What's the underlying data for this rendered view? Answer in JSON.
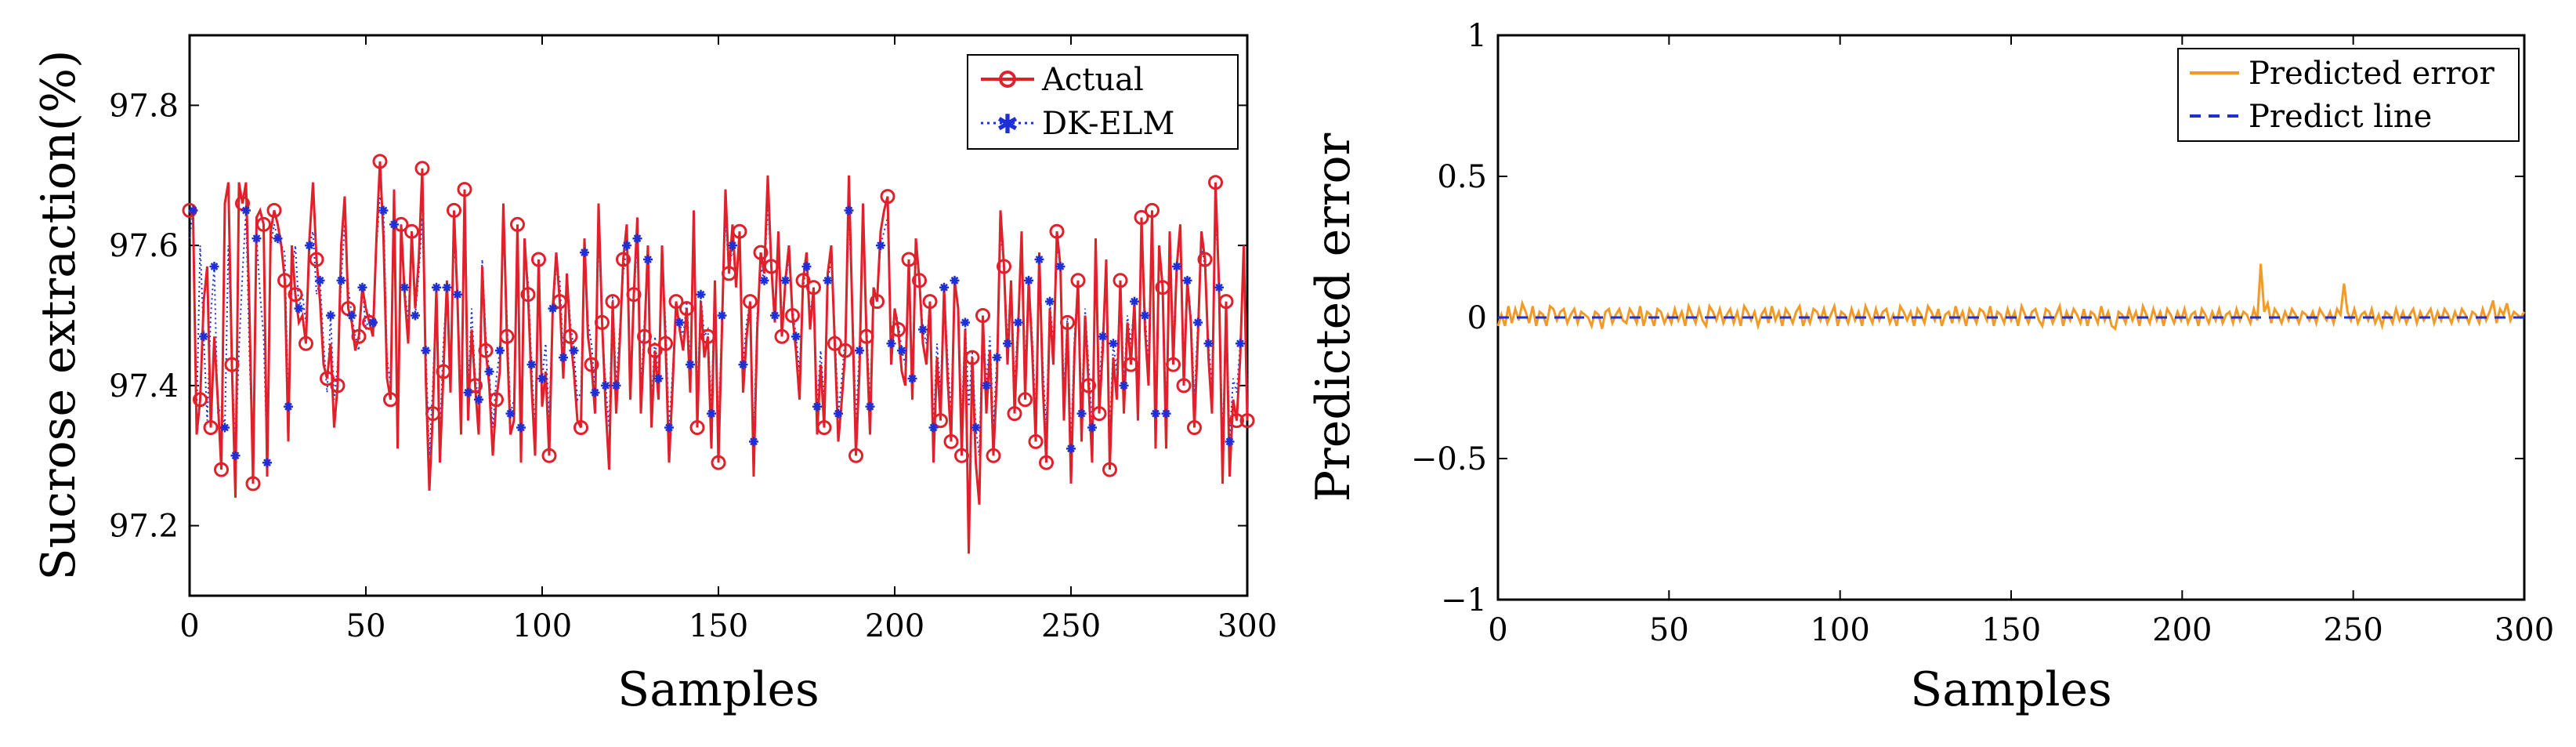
{
  "chart_data": [
    {
      "type": "line",
      "xlabel": "Samples",
      "ylabel": "Sucrose extraction(%)",
      "xlim": [
        0,
        300
      ],
      "ylim": [
        97.1,
        97.9
      ],
      "xticks": [
        0,
        50,
        100,
        150,
        200,
        250,
        300
      ],
      "xtick_labels": [
        "0",
        "50",
        "100",
        "150",
        "200",
        "250",
        "300"
      ],
      "yticks": [
        97.2,
        97.4,
        97.6,
        97.8
      ],
      "ytick_labels": [
        "97.2",
        "97.4",
        "97.6",
        "97.8"
      ],
      "legend_position": "top-right",
      "colors": {
        "actual": "#e0202a",
        "predicted": "#1f2fd6"
      },
      "series": [
        {
          "name": "Actual",
          "style": "solid line with circle markers",
          "values": [
            97.65,
            97.64,
            97.33,
            97.38,
            97.52,
            97.57,
            97.34,
            97.47,
            97.38,
            97.28,
            97.66,
            97.69,
            97.43,
            97.24,
            97.69,
            97.66,
            97.69,
            97.5,
            97.26,
            97.64,
            97.65,
            97.63,
            97.27,
            97.62,
            97.65,
            97.63,
            97.6,
            97.55,
            97.32,
            97.6,
            97.53,
            97.49,
            97.5,
            97.46,
            97.61,
            97.69,
            97.58,
            97.52,
            97.43,
            97.41,
            97.46,
            97.34,
            97.4,
            97.6,
            97.67,
            97.51,
            97.49,
            97.45,
            97.47,
            97.54,
            97.51,
            97.49,
            97.47,
            97.61,
            97.72,
            97.61,
            97.41,
            97.38,
            97.68,
            97.31,
            97.63,
            97.53,
            97.46,
            97.62,
            97.51,
            97.58,
            97.71,
            97.41,
            97.25,
            97.36,
            97.54,
            97.29,
            97.42,
            97.55,
            97.39,
            97.65,
            97.52,
            97.33,
            97.68,
            97.35,
            97.48,
            97.4,
            97.33,
            97.57,
            97.45,
            97.4,
            97.3,
            97.38,
            97.42,
            97.66,
            97.47,
            97.33,
            97.35,
            97.63,
            97.29,
            97.61,
            97.53,
            97.4,
            97.3,
            97.58,
            97.37,
            97.42,
            97.3,
            97.51,
            97.59,
            97.52,
            97.41,
            97.56,
            97.47,
            97.42,
            97.35,
            97.34,
            97.61,
            97.47,
            97.43,
            97.36,
            97.66,
            97.49,
            97.37,
            97.28,
            97.52,
            97.36,
            97.46,
            97.58,
            97.63,
            97.38,
            97.53,
            97.64,
            97.36,
            97.47,
            97.6,
            97.34,
            97.45,
            97.38,
            97.6,
            97.46,
            97.29,
            97.4,
            97.52,
            97.48,
            97.45,
            97.51,
            97.39,
            97.65,
            97.34,
            97.52,
            97.44,
            97.47,
            97.31,
            97.55,
            97.29,
            97.48,
            97.68,
            97.56,
            97.63,
            97.54,
            97.62,
            97.39,
            97.47,
            97.52,
            97.27,
            97.48,
            97.59,
            97.56,
            97.7,
            97.57,
            97.49,
            97.62,
            97.47,
            97.55,
            97.6,
            97.5,
            97.45,
            97.38,
            97.55,
            97.59,
            97.48,
            97.54,
            97.33,
            97.43,
            97.34,
            97.56,
            97.6,
            97.46,
            97.32,
            97.38,
            97.45,
            97.7,
            97.5,
            97.3,
            97.42,
            97.66,
            97.47,
            97.33,
            97.54,
            97.52,
            97.62,
            97.65,
            97.67,
            97.43,
            97.51,
            97.48,
            97.42,
            97.4,
            97.58,
            97.38,
            97.61,
            97.55,
            97.46,
            97.43,
            97.52,
            97.29,
            97.44,
            97.35,
            97.54,
            97.41,
            97.32,
            97.55,
            97.51,
            97.3,
            97.48,
            97.16,
            97.44,
            97.29,
            97.23,
            97.5,
            97.36,
            97.45,
            97.3,
            97.41,
            97.65,
            97.57,
            97.43,
            97.55,
            97.36,
            97.48,
            97.62,
            97.38,
            97.55,
            97.45,
            97.32,
            97.59,
            97.4,
            97.29,
            97.51,
            97.43,
            97.62,
            97.57,
            97.35,
            97.49,
            97.26,
            97.45,
            97.55,
            97.32,
            97.5,
            97.4,
            97.29,
            97.61,
            97.36,
            97.45,
            97.58,
            97.28,
            97.44,
            97.38,
            97.55,
            97.36,
            97.49,
            97.43,
            97.52,
            97.35,
            97.64,
            97.48,
            97.4,
            97.65,
            97.31,
            97.6,
            97.54,
            97.31,
            97.62,
            97.43,
            97.57,
            97.63,
            97.4,
            97.55,
            97.49,
            97.34,
            97.47,
            97.62,
            97.58,
            97.44,
            97.36,
            97.69,
            97.54,
            97.26,
            97.52,
            97.27,
            97.38,
            97.35,
            97.44,
            97.6,
            97.35
          ]
        },
        {
          "name": "DK-ELM",
          "style": "dotted line with star markers",
          "values": [
            97.61,
            97.65,
            97.36,
            97.6,
            97.47,
            97.35,
            97.5,
            97.57,
            97.36,
            97.37,
            97.34,
            97.6,
            97.44,
            97.3,
            97.45,
            97.56,
            97.65,
            97.44,
            97.29,
            97.61,
            97.53,
            97.47,
            97.29,
            97.6,
            97.63,
            97.61,
            97.6,
            97.59,
            97.37,
            97.56,
            97.6,
            97.51,
            97.53,
            97.49,
            97.6,
            97.62,
            97.53,
            97.55,
            97.46,
            97.39,
            97.5,
            97.38,
            97.43,
            97.55,
            97.63,
            97.54,
            97.5,
            97.47,
            97.45,
            97.54,
            97.48,
            97.5,
            97.49,
            97.6,
            97.67,
            97.65,
            97.44,
            97.4,
            97.63,
            97.35,
            97.61,
            97.54,
            97.49,
            97.62,
            97.5,
            97.56,
            97.64,
            97.45,
            97.3,
            97.4,
            97.54,
            97.33,
            97.46,
            97.54,
            97.42,
            97.61,
            97.53,
            97.37,
            97.64,
            97.39,
            97.51,
            97.41,
            97.38,
            97.58,
            97.47,
            97.42,
            97.34,
            97.41,
            97.45,
            97.62,
            97.5,
            97.36,
            97.38,
            97.6,
            97.34,
            97.58,
            97.55,
            97.43,
            97.33,
            97.56,
            97.41,
            97.46,
            97.35,
            97.51,
            97.57,
            97.55,
            97.44,
            97.56,
            97.49,
            97.45,
            97.38,
            97.39,
            97.59,
            97.49,
            97.46,
            97.39,
            97.62,
            97.49,
            97.4,
            97.34,
            97.53,
            97.4,
            97.48,
            97.56,
            97.6,
            97.41,
            97.52,
            97.61,
            97.39,
            97.49,
            97.58,
            97.37,
            97.47,
            97.41,
            97.58,
            97.49,
            97.34,
            97.42,
            97.51,
            97.49,
            97.47,
            97.52,
            97.43,
            97.61,
            97.38,
            97.53,
            97.47,
            97.48,
            97.36,
            97.55,
            97.33,
            97.5,
            97.64,
            97.56,
            97.6,
            97.55,
            97.6,
            97.43,
            97.49,
            97.52,
            97.32,
            97.5,
            97.57,
            97.55,
            97.66,
            97.57,
            97.5,
            97.6,
            97.49,
            97.55,
            97.58,
            97.51,
            97.47,
            97.42,
            97.54,
            97.57,
            97.5,
            97.54,
            97.37,
            97.45,
            97.38,
            97.55,
            97.58,
            97.48,
            97.36,
            97.41,
            97.47,
            97.65,
            97.51,
            97.35,
            97.45,
            97.63,
            97.49,
            97.37,
            97.54,
            97.53,
            97.6,
            97.62,
            97.64,
            97.46,
            97.51,
            97.49,
            97.45,
            97.43,
            97.57,
            97.41,
            97.59,
            97.55,
            97.48,
            97.46,
            97.52,
            97.34,
            97.46,
            97.39,
            97.54,
            97.44,
            97.36,
            97.55,
            97.51,
            97.35,
            97.49,
            97.37,
            97.45,
            97.34,
            97.3,
            97.5,
            97.4,
            97.47,
            97.34,
            97.44,
            97.62,
            97.57,
            97.46,
            97.55,
            97.4,
            97.49,
            97.6,
            97.42,
            97.55,
            97.47,
            97.36,
            97.58,
            97.43,
            97.34,
            97.52,
            97.46,
            97.6,
            97.57,
            97.39,
            97.5,
            97.31,
            97.47,
            97.55,
            97.36,
            97.51,
            97.43,
            97.34,
            97.59,
            97.4,
            97.47,
            97.57,
            97.33,
            97.46,
            97.42,
            97.55,
            97.4,
            97.5,
            97.46,
            97.52,
            97.39,
            97.62,
            97.5,
            97.43,
            97.63,
            97.36,
            97.59,
            97.54,
            97.36,
            97.6,
            97.46,
            97.57,
            97.61,
            97.43,
            97.55,
            97.5,
            97.38,
            97.49,
            97.6,
            97.57,
            97.46,
            97.4,
            97.65,
            97.54,
            97.31,
            97.52,
            97.32,
            97.41,
            97.39,
            97.46,
            97.58,
            97.4
          ]
        }
      ]
    },
    {
      "type": "line",
      "xlabel": "Samples",
      "ylabel": "Predicted error",
      "xlim": [
        0,
        300
      ],
      "ylim": [
        -1,
        1
      ],
      "xticks": [
        0,
        50,
        100,
        150,
        200,
        250,
        300
      ],
      "xtick_labels": [
        "0",
        "50",
        "100",
        "150",
        "200",
        "250",
        "300"
      ],
      "yticks": [
        -1,
        -0.5,
        0,
        0.5,
        1
      ],
      "ytick_labels": [
        "−1",
        "−0.5",
        "0",
        "0.5",
        "1"
      ],
      "legend_position": "top-right",
      "colors": {
        "error": "#f39a26",
        "line": "#1f2fd6"
      },
      "series": [
        {
          "name": "Predicted error",
          "style": "solid line",
          "values": [
            -0.03,
            0.01,
            -0.03,
            0.04,
            -0.02,
            0.03,
            -0.01,
            0.05,
            0.02,
            -0.02,
            0.04,
            -0.03,
            0.02,
            0.01,
            -0.03,
            0.04,
            0.03,
            -0.01,
            0.02,
            0.03,
            -0.02,
            0.01,
            0.03,
            -0.02,
            0.02,
            0.01,
            0.0,
            -0.03,
            0.02,
            0.01,
            -0.04,
            0.02,
            0.03,
            -0.02,
            0.01,
            0.03,
            -0.01,
            -0.02,
            0.03,
            0.01,
            -0.02,
            0.04,
            -0.03,
            0.02,
            0.01,
            -0.03,
            0.03,
            0.02,
            -0.02,
            0.01,
            -0.02,
            0.03,
            -0.01,
            0.02,
            -0.03,
            0.04,
            0.01,
            -0.02,
            0.03,
            -0.01,
            -0.03,
            0.04,
            0.02,
            -0.01,
            0.03,
            -0.02,
            0.01,
            0.03,
            -0.02,
            0.02,
            -0.03,
            0.04,
            0.02,
            -0.01,
            0.02,
            -0.03,
            0.01,
            0.03,
            -0.02,
            0.04,
            -0.01,
            0.02,
            -0.03,
            0.03,
            0.01,
            -0.02,
            0.02,
            0.04,
            -0.03,
            0.01,
            -0.02,
            0.03,
            0.02,
            -0.01,
            0.03,
            -0.02,
            0.01,
            0.04,
            -0.03,
            0.02,
            0.01,
            -0.02,
            0.03,
            -0.01,
            0.02,
            -0.03,
            0.04,
            0.01,
            -0.02,
            0.03,
            -0.01,
            0.02,
            0.03,
            -0.02,
            0.01,
            -0.03,
            0.04,
            0.02,
            -0.01,
            0.02,
            -0.03,
            0.03,
            0.01,
            -0.02,
            0.04,
            0.02,
            -0.01,
            0.03,
            -0.03,
            0.01,
            0.02,
            -0.02,
            0.04,
            -0.01,
            0.02,
            -0.03,
            0.03,
            0.01,
            -0.02,
            0.03,
            0.02,
            -0.01,
            0.04,
            -0.03,
            0.02,
            0.01,
            -0.02,
            0.03,
            -0.01,
            0.02,
            -0.03,
            0.04,
            0.01,
            -0.02,
            0.02,
            0.03,
            -0.01,
            -0.03,
            0.03,
            0.02,
            -0.02,
            0.01,
            0.04,
            -0.03,
            0.02,
            -0.01,
            0.03,
            0.01,
            -0.02,
            0.03,
            -0.03,
            0.02,
            0.01,
            -0.02,
            0.04,
            -0.01,
            0.02,
            -0.03,
            -0.04,
            0.02,
            0.01,
            -0.02,
            0.03,
            -0.01,
            0.02,
            -0.03,
            0.04,
            0.01,
            -0.02,
            0.03,
            -0.01,
            0.02,
            -0.03,
            0.03,
            0.01,
            -0.02,
            0.02,
            -0.01,
            0.03,
            -0.02,
            0.01,
            0.02,
            -0.03,
            0.03,
            0.01,
            -0.02,
            0.02,
            -0.01,
            0.03,
            -0.02,
            0.01,
            0.02,
            -0.02,
            0.03,
            -0.01,
            0.02,
            0.01,
            -0.02,
            0.03,
            -0.01,
            0.19,
            0.02,
            0.05,
            -0.02,
            0.03,
            0.01,
            -0.02,
            0.02,
            -0.01,
            0.03,
            0.01,
            -0.02,
            0.02,
            0.01,
            -0.01,
            0.02,
            -0.02,
            0.03,
            0.01,
            -0.01,
            0.02,
            -0.02,
            0.03,
            0.01,
            0.12,
            0.02,
            -0.01,
            0.03,
            -0.02,
            0.01,
            0.02,
            -0.01,
            0.03,
            -0.02,
            0.01,
            -0.03,
            0.02,
            0.01,
            -0.02,
            0.03,
            -0.01,
            0.02,
            -0.02,
            0.01,
            0.03,
            -0.02,
            0.02,
            -0.01,
            0.01,
            0.03,
            -0.02,
            0.02,
            -0.01,
            0.03,
            0.01,
            -0.02,
            0.02,
            -0.01,
            0.03,
            0.01,
            -0.02,
            0.02,
            0.01,
            -0.02,
            0.03,
            -0.01,
            0.02,
            0.06,
            -0.02,
            0.03,
            0.01,
            0.05,
            -0.01,
            0.02,
            0.01,
            0.0,
            0.02
          ]
        },
        {
          "name": "Predict line",
          "style": "dashed line",
          "values": [
            0,
            0
          ]
        }
      ]
    }
  ]
}
